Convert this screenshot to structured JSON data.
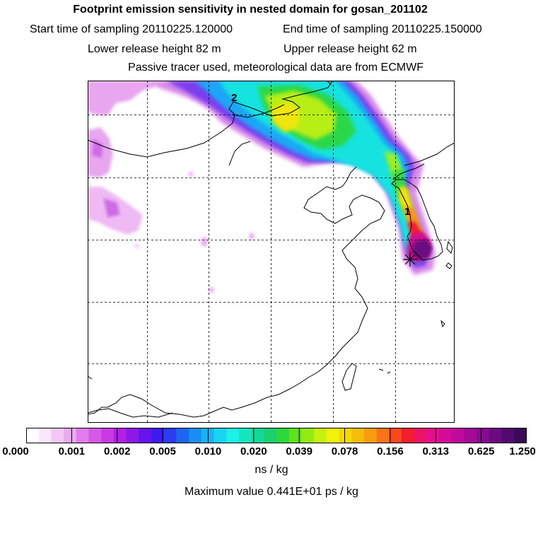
{
  "header": {
    "title": "Footprint emission sensitivity in nested domain for gosan_201102",
    "start_label": "Start time of sampling 20110225.120000",
    "end_label": "End time of sampling 20110225.150000",
    "lower_label": "Lower release height   82 m",
    "upper_label": "Upper release height   62 m",
    "note": "Passive tracer used, meteorological data are from ECMWF"
  },
  "map": {
    "markers": [
      {
        "label": "2"
      },
      {
        "label": "1"
      }
    ],
    "grid": "dashed lat/lon grid"
  },
  "colorbar": {
    "ticks": [
      "0.000",
      "0.001",
      "0.002",
      "0.005",
      "0.010",
      "0.020",
      "0.039",
      "0.078",
      "0.156",
      "0.313",
      "0.625",
      "1.250"
    ],
    "colors": [
      "#ffffff",
      "#fbe6fb",
      "#f4c8f5",
      "#ecaaf0",
      "#e07ceb",
      "#d55ae6",
      "#c93ae4",
      "#b21fe8",
      "#8c19ea",
      "#6614ec",
      "#3f1aee",
      "#2a3df0",
      "#1e66f2",
      "#1a8ef4",
      "#18b3f6",
      "#19d4f2",
      "#1cf2e6",
      "#16e6c0",
      "#14d89a",
      "#1bd071",
      "#2cd83a",
      "#5ee21c",
      "#96ea14",
      "#c7f10f",
      "#f2f20a",
      "#f6d80a",
      "#f8bc0c",
      "#f89c10",
      "#f87416",
      "#f8481c",
      "#f41e2e",
      "#ec1466",
      "#e50e8c",
      "#d40a99",
      "#bf0a9c",
      "#a40a98",
      "#880a90",
      "#6c0a82",
      "#520a6e",
      "#3c0a58"
    ],
    "unit_label": "ns / kg"
  },
  "max_value": "Maximum value  0.441E+01 ps / kg"
}
